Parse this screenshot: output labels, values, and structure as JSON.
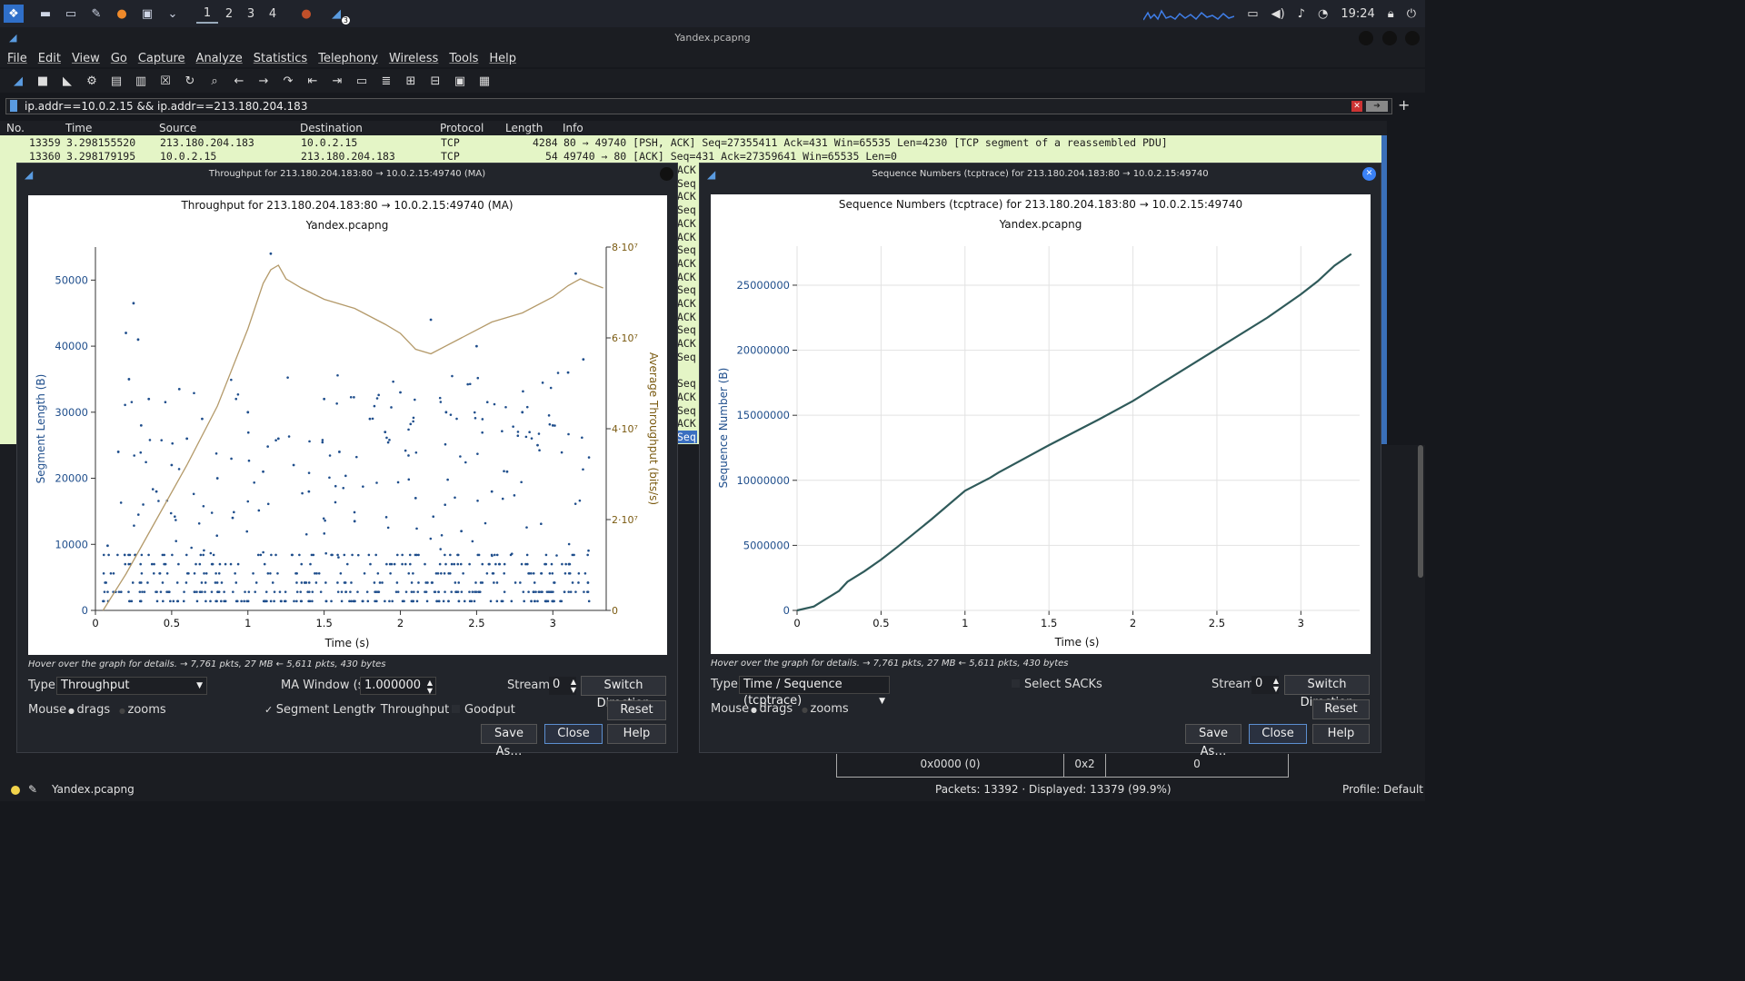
{
  "taskbar": {
    "workspaces": [
      "1",
      "2",
      "3",
      "4"
    ],
    "clock": "19:24",
    "notif_badge": "3"
  },
  "window": {
    "title": "Yandex.pcapng"
  },
  "menu": [
    "File",
    "Edit",
    "View",
    "Go",
    "Capture",
    "Analyze",
    "Statistics",
    "Telephony",
    "Wireless",
    "Tools",
    "Help"
  ],
  "filter": {
    "value": "ip.addr==10.0.2.15 && ip.addr==213.180.204.183"
  },
  "packet_list": {
    "headers": [
      "No.",
      "Time",
      "Source",
      "Destination",
      "Protocol",
      "Length",
      "Info"
    ],
    "rows": [
      {
        "no": "13359",
        "time": "3.298155520",
        "src": "213.180.204.183",
        "dst": "10.0.2.15",
        "proto": "TCP",
        "len": "4284",
        "info": "80 → 49740 [PSH, ACK] Seq=27355411 Ack=431 Win=65535 Len=4230 [TCP segment of a reassembled PDU]"
      },
      {
        "no": "13360",
        "time": "3.298179195",
        "src": "10.0.2.15",
        "dst": "213.180.204.183",
        "proto": "TCP",
        "len": "54",
        "info": "49740 → 80 [ACK] Seq=431 Ack=27359641 Win=65535 Len=0"
      }
    ],
    "right_fragments": [
      "ACK",
      "Seq",
      "ACK",
      "Seq",
      "ACK",
      "ACK",
      "Seq",
      "ACK",
      "ACK",
      "Seq",
      "ACK",
      "ACK",
      "Seq",
      "ACK",
      "Seq",
      "",
      "Seq",
      "ACK",
      "Seq",
      "ACK",
      "Seq"
    ]
  },
  "bytes_pane": {
    "offset": "0x0000 (0)",
    "hex": "0x2",
    "value": "0"
  },
  "status": {
    "file": "Yandex.pcapng",
    "packets": "Packets: 13392 · Displayed: 13379 (99.9%)",
    "profile": "Profile: Default"
  },
  "throughput_dialog": {
    "window_title": "Throughput for 213.180.204.183:80 → 10.0.2.15:49740 (MA)",
    "hint": "Hover over the graph for details. → 7,761 pkts, 27 MB ← 5,611 pkts, 430 bytes",
    "type_label": "Type",
    "type_value": "Throughput",
    "ma_label": "MA Window (s)",
    "ma_value": "1.000000",
    "stream_label": "Stream",
    "stream_value": "0",
    "switch_direction": "Switch Direction",
    "mouse_label": "Mouse",
    "drags": "drags",
    "zooms": "zooms",
    "seg_length": "Segment Length",
    "throughput_cb": "Throughput",
    "goodput": "Goodput",
    "reset": "Reset",
    "save_as": "Save As…",
    "close": "Close",
    "help": "Help",
    "colors": {
      "segments": "#1f4e8c",
      "throughput": "#b49a6a"
    }
  },
  "sequence_dialog": {
    "window_title": "Sequence Numbers (tcptrace) for 213.180.204.183:80 → 10.0.2.15:49740",
    "hint": "Hover over the graph for details. → 7,761 pkts, 27 MB ← 5,611 pkts, 430 bytes",
    "type_label": "Type",
    "type_value": "Time / Sequence (tcptrace)",
    "select_sacks": "Select SACKs",
    "stream_label": "Stream",
    "stream_value": "0",
    "switch_direction": "Switch Direction",
    "mouse_label": "Mouse",
    "drags": "drags",
    "zooms": "zooms",
    "reset": "Reset",
    "save_as": "Save As…",
    "close": "Close",
    "help": "Help",
    "colors": {
      "line": "#2f5a5a"
    }
  },
  "chart_data": [
    {
      "type": "scatter",
      "title": "Throughput for 213.180.204.183:80 → 10.0.2.15:49740 (MA)",
      "subtitle": "Yandex.pcapng",
      "xlabel": "Time (s)",
      "ylabel": "Segment Length (B)",
      "y2label": "Average Throughput (bits/s)",
      "xlim": [
        0,
        3.35
      ],
      "ylim": [
        0,
        55000
      ],
      "y2lim": [
        0,
        80000000
      ],
      "xticks": [
        "0",
        "0.5",
        "1",
        "1.5",
        "2",
        "2.5",
        "3"
      ],
      "yticks": [
        "0",
        "10000",
        "20000",
        "30000",
        "40000",
        "50000"
      ],
      "y2ticks": [
        "0",
        "2·10⁷",
        "4·10⁷",
        "6·10⁷",
        "8·10⁷"
      ],
      "series": [
        {
          "name": "Segment Length",
          "kind": "scatter",
          "note_bands": [
            1400,
            2800,
            4200,
            5600,
            7000,
            8400
          ],
          "x": [
            0.08,
            0.15,
            0.2,
            0.22,
            0.25,
            0.28,
            0.3,
            0.35,
            0.4,
            0.5,
            0.55,
            0.6,
            0.7,
            0.8,
            0.9,
            1.0,
            1.1,
            1.15,
            1.2,
            1.3,
            1.4,
            1.5,
            1.6,
            1.7,
            1.8,
            1.9,
            2.0,
            2.1,
            2.2,
            2.3,
            2.4,
            2.5,
            2.6,
            2.7,
            2.8,
            2.9,
            3.0,
            3.1,
            3.15,
            3.2
          ],
          "y": [
            9800,
            24000,
            42000,
            35000,
            46500,
            41000,
            28000,
            32000,
            18000,
            22000,
            33500,
            26000,
            29000,
            20000,
            14000,
            30000,
            21000,
            54000,
            26000,
            22000,
            18000,
            32000,
            24000,
            13500,
            29000,
            27000,
            33000,
            17000,
            44000,
            30000,
            12000,
            40000,
            18000,
            21000,
            30000,
            25000,
            28000,
            36000,
            51000,
            38000
          ]
        },
        {
          "name": "Throughput",
          "kind": "line",
          "axis": "right",
          "x": [
            0.05,
            0.2,
            0.4,
            0.6,
            0.8,
            1.0,
            1.1,
            1.15,
            1.2,
            1.25,
            1.35,
            1.5,
            1.7,
            1.9,
            2.0,
            2.1,
            2.2,
            2.4,
            2.6,
            2.8,
            3.0,
            3.1,
            3.18,
            3.25,
            3.33
          ],
          "y": [
            0,
            8000000,
            20000000,
            32000000,
            45000000,
            62000000,
            72000000,
            75000000,
            76000000,
            73000000,
            71000000,
            68500000,
            66500000,
            63000000,
            61000000,
            57500000,
            56500000,
            60000000,
            63500000,
            65500000,
            69000000,
            71500000,
            73000000,
            72000000,
            71000000
          ]
        }
      ]
    },
    {
      "type": "line",
      "title": "Sequence Numbers (tcptrace) for 213.180.204.183:80 → 10.0.2.15:49740",
      "subtitle": "Yandex.pcapng",
      "xlabel": "Time (s)",
      "ylabel": "Sequence Number (B)",
      "xlim": [
        0,
        3.35
      ],
      "ylim": [
        0,
        28000000
      ],
      "xticks": [
        "0",
        "0.5",
        "1",
        "1.5",
        "2",
        "2.5",
        "3"
      ],
      "yticks": [
        "0",
        "5000000",
        "10000000",
        "15000000",
        "20000000",
        "25000000"
      ],
      "series": [
        {
          "x": [
            0,
            0.1,
            0.15,
            0.25,
            0.3,
            0.4,
            0.5,
            0.6,
            0.8,
            1.0,
            1.15,
            1.2,
            1.5,
            1.8,
            2.0,
            2.2,
            2.5,
            2.8,
            3.0,
            3.1,
            3.2,
            3.3
          ],
          "y": [
            0,
            300000,
            700000,
            1500000,
            2200000,
            3000000,
            3900000,
            4900000,
            7000000,
            9200000,
            10200000,
            10600000,
            12700000,
            14700000,
            16100000,
            17700000,
            20100000,
            22500000,
            24300000,
            25300000,
            26500000,
            27400000
          ]
        }
      ]
    }
  ]
}
